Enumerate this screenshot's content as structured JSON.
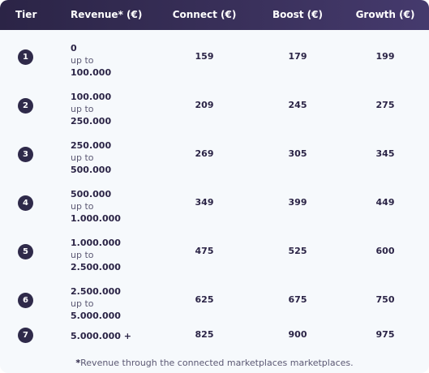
{
  "header": {
    "tier": "Tier",
    "revenue": "Revenue* (€)",
    "connect": "Connect (€)",
    "boost": "Boost (€)",
    "growth": "Growth (€)"
  },
  "rows": [
    {
      "tier": "1",
      "from": "0",
      "middle": "up to",
      "to": "100.000",
      "connect": "159",
      "boost": "179",
      "growth": "199"
    },
    {
      "tier": "2",
      "from": "100.000",
      "middle": "up to",
      "to": "250.000",
      "connect": "209",
      "boost": "245",
      "growth": "275"
    },
    {
      "tier": "3",
      "from": "250.000",
      "middle": "up to",
      "to": "500.000",
      "connect": "269",
      "boost": "305",
      "growth": "345"
    },
    {
      "tier": "4",
      "from": "500.000",
      "middle": "up to",
      "to": "1.000.000",
      "connect": "349",
      "boost": "399",
      "growth": "449"
    },
    {
      "tier": "5",
      "from": "1.000.000",
      "middle": "up to",
      "to": "2.500.000",
      "connect": "475",
      "boost": "525",
      "growth": "600"
    },
    {
      "tier": "6",
      "from": "2.500.000",
      "middle": "up to",
      "to": "5.000.000",
      "connect": "625",
      "boost": "675",
      "growth": "750"
    },
    {
      "tier": "7",
      "single": "5.000.000 +",
      "connect": "825",
      "boost": "900",
      "growth": "975"
    }
  ],
  "footnote": {
    "star": "*",
    "text": "Revenue through the connected marketplaces marketplaces."
  }
}
